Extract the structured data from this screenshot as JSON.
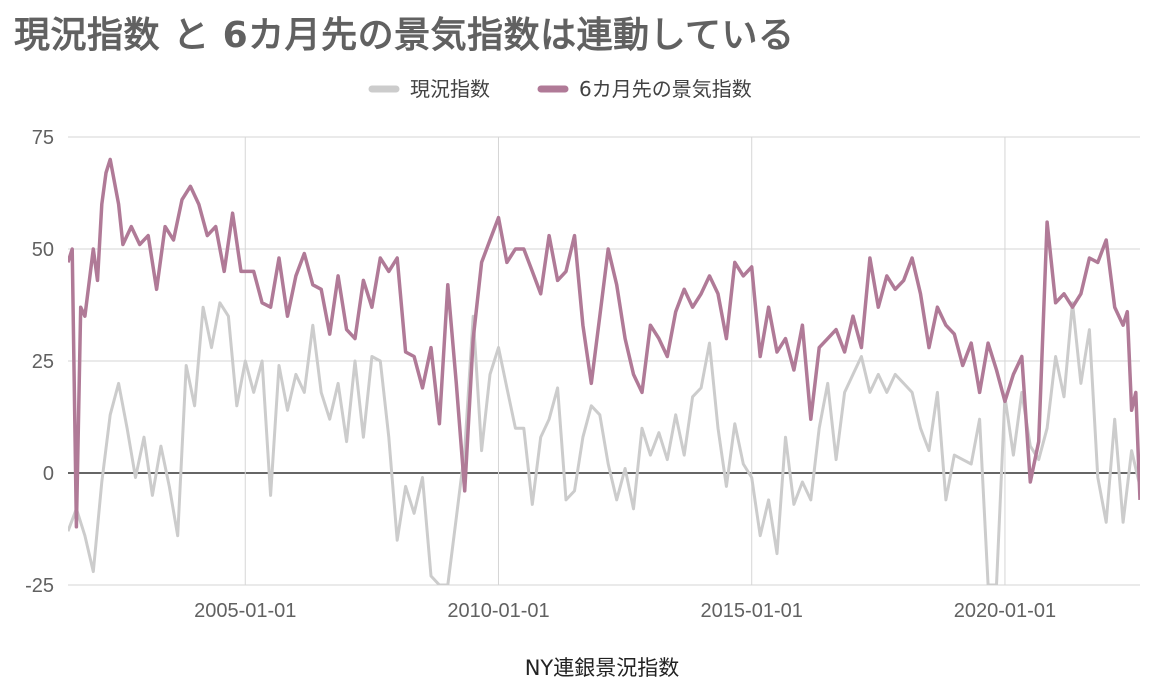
{
  "chart_data": {
    "type": "line",
    "title": "現況指数 と 6カ月先の景気指数は連動している",
    "xlabel": "NY連銀景況指数",
    "ylabel": "",
    "x_start": "2001-07-01",
    "x_end": "2022-09-01",
    "x_ticks": [
      "2005-01-01",
      "2010-01-01",
      "2015-01-01",
      "2020-01-01"
    ],
    "ylim": [
      -25,
      75
    ],
    "y_ticks": [
      -25,
      0,
      25,
      50,
      75
    ],
    "legend": "top-center",
    "grid": true,
    "series": [
      {
        "name": "現況指数",
        "color": "#cccccc",
        "points": [
          [
            "2001-07",
            -13
          ],
          [
            "2001-09",
            -8
          ],
          [
            "2001-11",
            -14
          ],
          [
            "2002-01",
            -22
          ],
          [
            "2002-03",
            -2
          ],
          [
            "2002-05",
            13
          ],
          [
            "2002-07",
            20
          ],
          [
            "2002-09",
            10
          ],
          [
            "2002-11",
            -1
          ],
          [
            "2003-01",
            8
          ],
          [
            "2003-03",
            -5
          ],
          [
            "2003-05",
            6
          ],
          [
            "2003-07",
            -3
          ],
          [
            "2003-09",
            -14
          ],
          [
            "2003-11",
            24
          ],
          [
            "2004-01",
            15
          ],
          [
            "2004-03",
            37
          ],
          [
            "2004-05",
            28
          ],
          [
            "2004-07",
            38
          ],
          [
            "2004-09",
            35
          ],
          [
            "2004-11",
            15
          ],
          [
            "2005-01",
            25
          ],
          [
            "2005-03",
            18
          ],
          [
            "2005-05",
            25
          ],
          [
            "2005-07",
            -5
          ],
          [
            "2005-09",
            24
          ],
          [
            "2005-11",
            14
          ],
          [
            "2006-01",
            22
          ],
          [
            "2006-03",
            18
          ],
          [
            "2006-05",
            33
          ],
          [
            "2006-07",
            18
          ],
          [
            "2006-09",
            12
          ],
          [
            "2006-11",
            20
          ],
          [
            "2007-01",
            7
          ],
          [
            "2007-03",
            25
          ],
          [
            "2007-05",
            8
          ],
          [
            "2007-07",
            26
          ],
          [
            "2007-09",
            25
          ],
          [
            "2007-11",
            8
          ],
          [
            "2008-01",
            -15
          ],
          [
            "2008-03",
            -3
          ],
          [
            "2008-05",
            -9
          ],
          [
            "2008-07",
            -1
          ],
          [
            "2008-09",
            -23
          ],
          [
            "2008-11",
            -25
          ],
          [
            "2009-01",
            -25
          ],
          [
            "2009-03",
            -10
          ],
          [
            "2009-05",
            5
          ],
          [
            "2009-07",
            35
          ],
          [
            "2009-09",
            5
          ],
          [
            "2009-11",
            22
          ],
          [
            "2010-01",
            28
          ],
          [
            "2010-03",
            19
          ],
          [
            "2010-05",
            10
          ],
          [
            "2010-07",
            10
          ],
          [
            "2010-09",
            -7
          ],
          [
            "2010-11",
            8
          ],
          [
            "2011-01",
            12
          ],
          [
            "2011-03",
            19
          ],
          [
            "2011-05",
            -6
          ],
          [
            "2011-07",
            -4
          ],
          [
            "2011-09",
            8
          ],
          [
            "2011-11",
            15
          ],
          [
            "2012-01",
            13
          ],
          [
            "2012-03",
            2
          ],
          [
            "2012-05",
            -6
          ],
          [
            "2012-07",
            1
          ],
          [
            "2012-09",
            -8
          ],
          [
            "2012-11",
            10
          ],
          [
            "2013-01",
            4
          ],
          [
            "2013-03",
            9
          ],
          [
            "2013-05",
            3
          ],
          [
            "2013-07",
            13
          ],
          [
            "2013-09",
            4
          ],
          [
            "2013-11",
            17
          ],
          [
            "2014-01",
            19
          ],
          [
            "2014-03",
            29
          ],
          [
            "2014-05",
            10
          ],
          [
            "2014-07",
            -3
          ],
          [
            "2014-09",
            11
          ],
          [
            "2014-11",
            2
          ],
          [
            "2015-01",
            -1
          ],
          [
            "2015-03",
            -14
          ],
          [
            "2015-05",
            -6
          ],
          [
            "2015-07",
            -18
          ],
          [
            "2015-09",
            8
          ],
          [
            "2015-11",
            -7
          ],
          [
            "2016-01",
            -2
          ],
          [
            "2016-03",
            -6
          ],
          [
            "2016-05",
            10
          ],
          [
            "2016-07",
            20
          ],
          [
            "2016-09",
            3
          ],
          [
            "2016-11",
            18
          ],
          [
            "2017-01",
            22
          ],
          [
            "2017-03",
            26
          ],
          [
            "2017-05",
            18
          ],
          [
            "2017-07",
            22
          ],
          [
            "2017-09",
            18
          ],
          [
            "2017-11",
            22
          ],
          [
            "2018-01",
            20
          ],
          [
            "2018-03",
            18
          ],
          [
            "2018-05",
            10
          ],
          [
            "2018-07",
            5
          ],
          [
            "2018-09",
            18
          ],
          [
            "2018-11",
            -6
          ],
          [
            "2019-01",
            4
          ],
          [
            "2019-03",
            3
          ],
          [
            "2019-05",
            2
          ],
          [
            "2019-07",
            12
          ],
          [
            "2019-09",
            -25
          ],
          [
            "2019-11",
            -25
          ],
          [
            "2020-01",
            17
          ],
          [
            "2020-03",
            4
          ],
          [
            "2020-05",
            18
          ],
          [
            "2020-07",
            6
          ],
          [
            "2020-09",
            3
          ],
          [
            "2020-11",
            10
          ],
          [
            "2021-01",
            26
          ],
          [
            "2021-03",
            17
          ],
          [
            "2021-05",
            38
          ],
          [
            "2021-07",
            20
          ],
          [
            "2021-09",
            32
          ],
          [
            "2021-11",
            -1
          ],
          [
            "2022-01",
            -11
          ],
          [
            "2022-03",
            12
          ],
          [
            "2022-05",
            -11
          ],
          [
            "2022-07",
            5
          ],
          [
            "2022-09",
            -3
          ]
        ]
      },
      {
        "name": "6カ月先の景気指数",
        "color": "#b07a97",
        "points": [
          [
            "2001-07",
            47
          ],
          [
            "2001-08",
            50
          ],
          [
            "2001-09",
            -12
          ],
          [
            "2001-10",
            37
          ],
          [
            "2001-11",
            35
          ],
          [
            "2002-01",
            50
          ],
          [
            "2002-02",
            43
          ],
          [
            "2002-03",
            60
          ],
          [
            "2002-04",
            67
          ],
          [
            "2002-05",
            70
          ],
          [
            "2002-07",
            60
          ],
          [
            "2002-08",
            51
          ],
          [
            "2002-10",
            55
          ],
          [
            "2002-12",
            51
          ],
          [
            "2003-02",
            53
          ],
          [
            "2003-04",
            41
          ],
          [
            "2003-06",
            55
          ],
          [
            "2003-08",
            52
          ],
          [
            "2003-10",
            61
          ],
          [
            "2003-12",
            64
          ],
          [
            "2004-02",
            60
          ],
          [
            "2004-04",
            53
          ],
          [
            "2004-06",
            55
          ],
          [
            "2004-08",
            45
          ],
          [
            "2004-10",
            58
          ],
          [
            "2004-12",
            45
          ],
          [
            "2005-03",
            45
          ],
          [
            "2005-05",
            38
          ],
          [
            "2005-07",
            37
          ],
          [
            "2005-09",
            48
          ],
          [
            "2005-11",
            35
          ],
          [
            "2006-01",
            44
          ],
          [
            "2006-03",
            49
          ],
          [
            "2006-05",
            42
          ],
          [
            "2006-07",
            41
          ],
          [
            "2006-09",
            31
          ],
          [
            "2006-11",
            44
          ],
          [
            "2007-01",
            32
          ],
          [
            "2007-03",
            30
          ],
          [
            "2007-05",
            43
          ],
          [
            "2007-07",
            37
          ],
          [
            "2007-09",
            48
          ],
          [
            "2007-11",
            45
          ],
          [
            "2008-01",
            48
          ],
          [
            "2008-03",
            27
          ],
          [
            "2008-05",
            26
          ],
          [
            "2008-07",
            19
          ],
          [
            "2008-09",
            28
          ],
          [
            "2008-11",
            11
          ],
          [
            "2009-01",
            42
          ],
          [
            "2009-03",
            20
          ],
          [
            "2009-05",
            -4
          ],
          [
            "2009-07",
            30
          ],
          [
            "2009-09",
            47
          ],
          [
            "2009-11",
            52
          ],
          [
            "2010-01",
            57
          ],
          [
            "2010-03",
            47
          ],
          [
            "2010-05",
            50
          ],
          [
            "2010-07",
            50
          ],
          [
            "2010-09",
            45
          ],
          [
            "2010-11",
            40
          ],
          [
            "2011-01",
            53
          ],
          [
            "2011-03",
            43
          ],
          [
            "2011-05",
            45
          ],
          [
            "2011-07",
            53
          ],
          [
            "2011-09",
            33
          ],
          [
            "2011-11",
            20
          ],
          [
            "2012-01",
            35
          ],
          [
            "2012-03",
            50
          ],
          [
            "2012-05",
            42
          ],
          [
            "2012-07",
            30
          ],
          [
            "2012-09",
            22
          ],
          [
            "2012-11",
            18
          ],
          [
            "2013-01",
            33
          ],
          [
            "2013-03",
            30
          ],
          [
            "2013-05",
            26
          ],
          [
            "2013-07",
            36
          ],
          [
            "2013-09",
            41
          ],
          [
            "2013-11",
            37
          ],
          [
            "2014-01",
            40
          ],
          [
            "2014-03",
            44
          ],
          [
            "2014-05",
            40
          ],
          [
            "2014-07",
            30
          ],
          [
            "2014-09",
            47
          ],
          [
            "2014-11",
            44
          ],
          [
            "2015-01",
            46
          ],
          [
            "2015-03",
            26
          ],
          [
            "2015-05",
            37
          ],
          [
            "2015-07",
            27
          ],
          [
            "2015-09",
            30
          ],
          [
            "2015-11",
            23
          ],
          [
            "2016-01",
            33
          ],
          [
            "2016-03",
            12
          ],
          [
            "2016-05",
            28
          ],
          [
            "2016-07",
            30
          ],
          [
            "2016-09",
            32
          ],
          [
            "2016-11",
            27
          ],
          [
            "2017-01",
            35
          ],
          [
            "2017-03",
            28
          ],
          [
            "2017-05",
            48
          ],
          [
            "2017-07",
            37
          ],
          [
            "2017-09",
            44
          ],
          [
            "2017-11",
            41
          ],
          [
            "2018-01",
            43
          ],
          [
            "2018-03",
            48
          ],
          [
            "2018-05",
            40
          ],
          [
            "2018-07",
            28
          ],
          [
            "2018-09",
            37
          ],
          [
            "2018-11",
            33
          ],
          [
            "2019-01",
            31
          ],
          [
            "2019-03",
            24
          ],
          [
            "2019-05",
            29
          ],
          [
            "2019-07",
            18
          ],
          [
            "2019-09",
            29
          ],
          [
            "2019-11",
            23
          ],
          [
            "2020-01",
            16
          ],
          [
            "2020-03",
            22
          ],
          [
            "2020-05",
            26
          ],
          [
            "2020-07",
            -2
          ],
          [
            "2020-09",
            7
          ],
          [
            "2020-11",
            56
          ],
          [
            "2021-01",
            38
          ],
          [
            "2021-03",
            40
          ],
          [
            "2021-05",
            37
          ],
          [
            "2021-07",
            40
          ],
          [
            "2021-09",
            48
          ],
          [
            "2021-11",
            47
          ],
          [
            "2022-01",
            52
          ],
          [
            "2022-03",
            37
          ],
          [
            "2022-05",
            33
          ],
          [
            "2022-06",
            36
          ],
          [
            "2022-07",
            14
          ],
          [
            "2022-08",
            18
          ],
          [
            "2022-09",
            -6
          ]
        ]
      }
    ]
  }
}
